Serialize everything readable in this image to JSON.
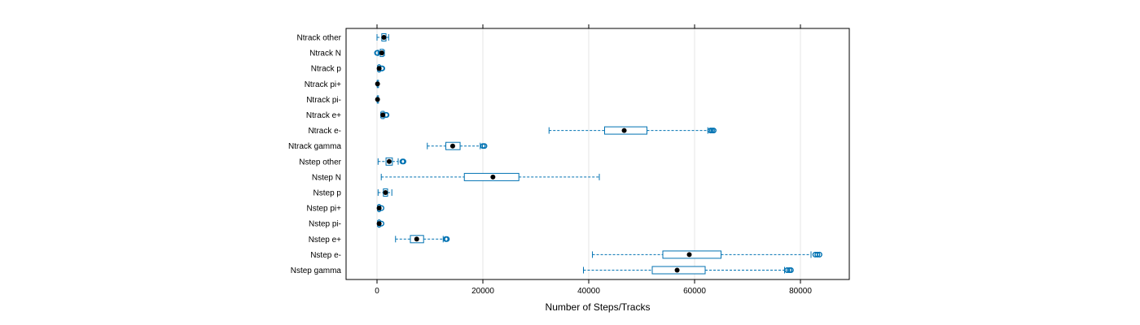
{
  "colors": {
    "box": "#0080ff",
    "whisker": "#0072b2",
    "outlier": "#0072b2",
    "median": "#000000",
    "grid": "#e6e6e6",
    "frame": "#000000"
  },
  "chart_data": {
    "type": "boxplot",
    "orientation": "horizontal",
    "xlabel": "Number of Steps/Tracks",
    "xlim": [
      -6000,
      89000
    ],
    "xticks": [
      0,
      20000,
      40000,
      60000,
      80000
    ],
    "xtick_labels": [
      "0",
      "20000",
      "40000",
      "60000",
      "80000"
    ],
    "grid": "vertical",
    "categories_top_to_bottom": [
      "Ntrack other",
      "Ntrack N",
      "Ntrack p",
      "Ntrack pi+",
      "Ntrack pi-",
      "Ntrack e+",
      "Ntrack e-",
      "Ntrack gamma",
      "Nstep other",
      "Nstep N",
      "Nstep p",
      "Nstep pi+",
      "Nstep pi-",
      "Nstep e+",
      "Nstep e-",
      "Nstep gamma"
    ],
    "boxes": [
      {
        "label": "Ntrack other",
        "whisker_low": 0,
        "q1": 900,
        "median": 1300,
        "q3": 1700,
        "whisker_high": 2200,
        "outliers": []
      },
      {
        "label": "Ntrack N",
        "whisker_low": 200,
        "q1": 600,
        "median": 900,
        "q3": 1200,
        "whisker_high": 1400,
        "outliers": [
          0,
          100
        ]
      },
      {
        "label": "Ntrack p",
        "whisker_low": 100,
        "q1": 250,
        "median": 400,
        "q3": 550,
        "whisker_high": 700,
        "outliers": [
          900,
          1000
        ]
      },
      {
        "label": "Ntrack pi+",
        "whisker_low": 0,
        "q1": 50,
        "median": 100,
        "q3": 150,
        "whisker_high": 200,
        "outliers": []
      },
      {
        "label": "Ntrack pi-",
        "whisker_low": 0,
        "q1": 50,
        "median": 100,
        "q3": 150,
        "whisker_high": 200,
        "outliers": []
      },
      {
        "label": "Ntrack e+",
        "whisker_low": 700,
        "q1": 900,
        "median": 1100,
        "q3": 1300,
        "whisker_high": 1500,
        "outliers": [
          1700,
          1800
        ]
      },
      {
        "label": "Ntrack e-",
        "whisker_low": 32500,
        "q1": 43000,
        "median": 46700,
        "q3": 51000,
        "whisker_high": 62500,
        "outliers": [
          63000,
          63300,
          63600
        ]
      },
      {
        "label": "Ntrack gamma",
        "whisker_low": 9500,
        "q1": 13000,
        "median": 14300,
        "q3": 15700,
        "whisker_high": 19500,
        "outliers": [
          20000,
          20300
        ]
      },
      {
        "label": "Nstep other",
        "whisker_low": 200,
        "q1": 1700,
        "median": 2300,
        "q3": 2900,
        "whisker_high": 4000,
        "outliers": [
          4800,
          5000
        ]
      },
      {
        "label": "Nstep N",
        "whisker_low": 800,
        "q1": 16500,
        "median": 21900,
        "q3": 26800,
        "whisker_high": 42000,
        "outliers": []
      },
      {
        "label": "Nstep p",
        "whisker_low": 200,
        "q1": 1200,
        "median": 1600,
        "q3": 2000,
        "whisker_high": 2800,
        "outliers": []
      },
      {
        "label": "Nstep pi+",
        "whisker_low": 100,
        "q1": 250,
        "median": 400,
        "q3": 550,
        "whisker_high": 700,
        "outliers": [
          850
        ]
      },
      {
        "label": "Nstep pi-",
        "whisker_low": 100,
        "q1": 250,
        "median": 400,
        "q3": 550,
        "whisker_high": 700,
        "outliers": [
          850
        ]
      },
      {
        "label": "Nstep e+",
        "whisker_low": 3500,
        "q1": 6300,
        "median": 7500,
        "q3": 8800,
        "whisker_high": 12500,
        "outliers": [
          13000,
          13200
        ]
      },
      {
        "label": "Nstep e-",
        "whisker_low": 40700,
        "q1": 54000,
        "median": 59000,
        "q3": 65000,
        "whisker_high": 82000,
        "outliers": [
          82800,
          83200,
          83600
        ]
      },
      {
        "label": "Nstep gamma",
        "whisker_low": 39000,
        "q1": 52000,
        "median": 56700,
        "q3": 62000,
        "whisker_high": 77000,
        "outliers": [
          77500,
          77900,
          78200
        ]
      }
    ]
  }
}
